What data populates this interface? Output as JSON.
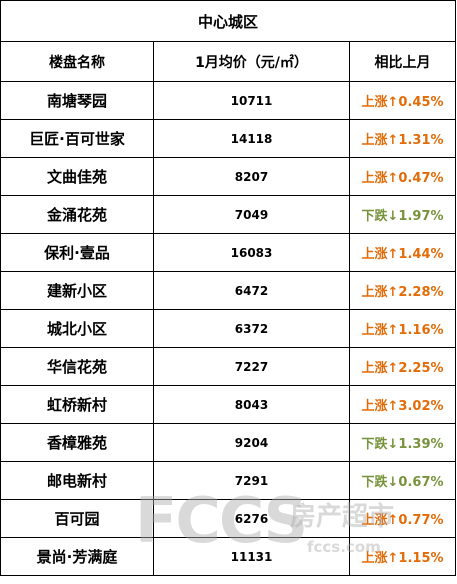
{
  "table": {
    "title": "中心城区",
    "headers": [
      "楼盘名称",
      "1月均价（元/㎡）",
      "相比上月"
    ],
    "colors": {
      "up": "#e36c09",
      "down": "#77933c"
    },
    "rows": [
      {
        "name": "南塘琴园",
        "price": "10711",
        "change": "上涨↑0.45%",
        "direction": "up"
      },
      {
        "name": "巨匠·百可世家",
        "price": "14118",
        "change": "上涨↑1.31%",
        "direction": "up"
      },
      {
        "name": "文曲佳苑",
        "price": "8207",
        "change": "上涨↑0.47%",
        "direction": "up"
      },
      {
        "name": "金涌花苑",
        "price": "7049",
        "change": "下跌↓1.97%",
        "direction": "down"
      },
      {
        "name": "保利·壹品",
        "price": "16083",
        "change": "上涨↑1.44%",
        "direction": "up"
      },
      {
        "name": "建新小区",
        "price": "6472",
        "change": "上涨↑2.28%",
        "direction": "up"
      },
      {
        "name": "城北小区",
        "price": "6372",
        "change": "上涨↑1.16%",
        "direction": "up"
      },
      {
        "name": "华信花苑",
        "price": "7227",
        "change": "上涨↑2.25%",
        "direction": "up"
      },
      {
        "name": "虹桥新村",
        "price": "8043",
        "change": "上涨↑3.02%",
        "direction": "up"
      },
      {
        "name": "香樟雅苑",
        "price": "9204",
        "change": "下跌↓1.39%",
        "direction": "down"
      },
      {
        "name": "邮电新村",
        "price": "7291",
        "change": "下跌↓0.67%",
        "direction": "down"
      },
      {
        "name": "百可园",
        "price": "6276",
        "change": "上涨↑0.77%",
        "direction": "up"
      },
      {
        "name": "景尚·芳满庭",
        "price": "11131",
        "change": "上涨↑1.15%",
        "direction": "up"
      }
    ]
  },
  "watermark": {
    "letters": "FCCS",
    "brand": "房产超市",
    "url": "fccs.com"
  }
}
